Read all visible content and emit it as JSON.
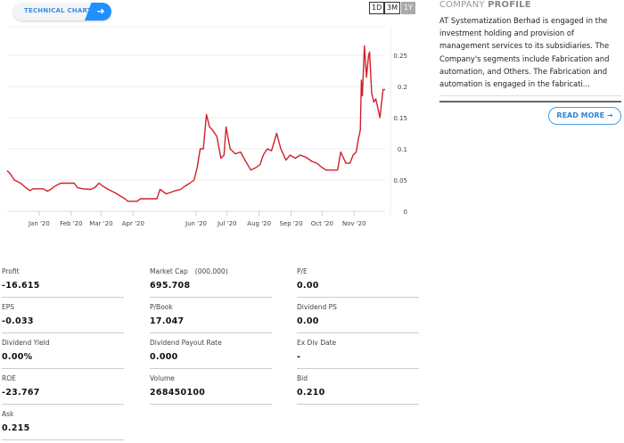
{
  "technical_chart": {
    "label": "TECHNICAL CHART",
    "icon": "arrow-right-icon"
  },
  "ranges": [
    {
      "label": "1D",
      "active": false
    },
    {
      "label": "3M",
      "active": false
    },
    {
      "label": "1Y",
      "active": true
    }
  ],
  "chart_data": {
    "type": "line",
    "line_color": "#d0202a",
    "grid": true,
    "ylim": [
      0,
      0.28
    ],
    "yticks": [
      {
        "v": 0,
        "label": "0"
      },
      {
        "v": 0.05,
        "label": "0.05"
      },
      {
        "v": 0.1,
        "label": "0.1"
      },
      {
        "v": 0.15,
        "label": "0.15"
      },
      {
        "v": 0.2,
        "label": "0.2"
      },
      {
        "v": 0.25,
        "label": "0.25"
      }
    ],
    "xticks": [
      {
        "d": "2020-01-01",
        "label": "Jan '20"
      },
      {
        "d": "2020-02-01",
        "label": "Feb '20"
      },
      {
        "d": "2020-03-01",
        "label": "Mar '20"
      },
      {
        "d": "2020-04-01",
        "label": "Apr '20"
      },
      {
        "d": "2020-06-01",
        "label": "Jun '20"
      },
      {
        "d": "2020-07-01",
        "label": "Jul '20"
      },
      {
        "d": "2020-08-01",
        "label": "Aug '20"
      },
      {
        "d": "2020-09-01",
        "label": "Sep '20"
      },
      {
        "d": "2020-10-01",
        "label": "Oct '20"
      },
      {
        "d": "2020-11-01",
        "label": "Nov '20"
      }
    ],
    "xlim": [
      "2019-12-01",
      "2020-12-01"
    ],
    "points": [
      [
        "2019-12-01",
        0.065
      ],
      [
        "2019-12-04",
        0.06
      ],
      [
        "2019-12-08",
        0.05
      ],
      [
        "2019-12-14",
        0.045
      ],
      [
        "2019-12-19",
        0.038
      ],
      [
        "2019-12-23",
        0.033
      ],
      [
        "2019-12-26",
        0.036
      ],
      [
        "2020-01-05",
        0.036
      ],
      [
        "2020-01-09",
        0.032
      ],
      [
        "2020-01-13",
        0.036
      ],
      [
        "2020-01-16",
        0.04
      ],
      [
        "2020-01-22",
        0.045
      ],
      [
        "2020-02-04",
        0.045
      ],
      [
        "2020-02-07",
        0.038
      ],
      [
        "2020-02-12",
        0.036
      ],
      [
        "2020-02-20",
        0.035
      ],
      [
        "2020-02-24",
        0.038
      ],
      [
        "2020-02-28",
        0.045
      ],
      [
        "2020-03-03",
        0.04
      ],
      [
        "2020-03-08",
        0.035
      ],
      [
        "2020-03-14",
        0.03
      ],
      [
        "2020-03-19",
        0.025
      ],
      [
        "2020-03-24",
        0.02
      ],
      [
        "2020-03-27",
        0.016
      ],
      [
        "2020-04-05",
        0.016
      ],
      [
        "2020-04-08",
        0.02
      ],
      [
        "2020-04-24",
        0.02
      ],
      [
        "2020-04-27",
        0.035
      ],
      [
        "2020-05-03",
        0.028
      ],
      [
        "2020-05-07",
        0.03
      ],
      [
        "2020-05-12",
        0.033
      ],
      [
        "2020-05-17",
        0.035
      ],
      [
        "2020-05-21",
        0.04
      ],
      [
        "2020-05-26",
        0.045
      ],
      [
        "2020-05-30",
        0.05
      ],
      [
        "2020-06-02",
        0.07
      ],
      [
        "2020-06-05",
        0.1
      ],
      [
        "2020-06-08",
        0.1
      ],
      [
        "2020-06-11",
        0.155
      ],
      [
        "2020-06-14",
        0.135
      ],
      [
        "2020-06-17",
        0.13
      ],
      [
        "2020-06-21",
        0.12
      ],
      [
        "2020-06-25",
        0.085
      ],
      [
        "2020-06-28",
        0.09
      ],
      [
        "2020-06-30",
        0.135
      ],
      [
        "2020-07-04",
        0.1
      ],
      [
        "2020-07-09",
        0.092
      ],
      [
        "2020-07-14",
        0.095
      ],
      [
        "2020-07-19",
        0.08
      ],
      [
        "2020-07-24",
        0.066
      ],
      [
        "2020-07-29",
        0.07
      ],
      [
        "2020-08-02",
        0.075
      ],
      [
        "2020-08-05",
        0.09
      ],
      [
        "2020-08-09",
        0.1
      ],
      [
        "2020-08-13",
        0.097
      ],
      [
        "2020-08-18",
        0.125
      ],
      [
        "2020-08-22",
        0.1
      ],
      [
        "2020-08-27",
        0.082
      ],
      [
        "2020-08-31",
        0.09
      ],
      [
        "2020-09-05",
        0.085
      ],
      [
        "2020-09-10",
        0.09
      ],
      [
        "2020-09-16",
        0.086
      ],
      [
        "2020-09-21",
        0.08
      ],
      [
        "2020-09-26",
        0.077
      ],
      [
        "2020-10-01",
        0.07
      ],
      [
        "2020-10-05",
        0.066
      ],
      [
        "2020-10-16",
        0.066
      ],
      [
        "2020-10-19",
        0.095
      ],
      [
        "2020-10-24",
        0.077
      ],
      [
        "2020-10-28",
        0.077
      ],
      [
        "2020-10-31",
        0.09
      ],
      [
        "2020-11-03",
        0.095
      ],
      [
        "2020-11-05",
        0.115
      ],
      [
        "2020-11-07",
        0.13
      ],
      [
        "2020-11-08",
        0.21
      ],
      [
        "2020-11-09",
        0.185
      ],
      [
        "2020-11-11",
        0.265
      ],
      [
        "2020-11-13",
        0.215
      ],
      [
        "2020-11-15",
        0.25
      ],
      [
        "2020-11-16",
        0.255
      ],
      [
        "2020-11-18",
        0.19
      ],
      [
        "2020-11-20",
        0.175
      ],
      [
        "2020-11-22",
        0.18
      ],
      [
        "2020-11-26",
        0.15
      ],
      [
        "2020-11-29",
        0.195
      ],
      [
        "2020-12-01",
        0.195
      ]
    ]
  },
  "company_profile": {
    "title_light": "COMPANY",
    "title_bold": "PROFILE",
    "text": "AT Systematization Berhad is engaged in the investment holding and provision of management services to its subsidiaries. The Company's segments include Fabrication and automation, and Others. The Fabrication and automation is engaged in the fabricati...",
    "read_more": "READ MORE",
    "read_more_icon": "arrow-right-icon"
  },
  "stats": [
    {
      "label": "Profit",
      "value": "-16.615"
    },
    {
      "label": "Market Cap",
      "unit": "(000,000)",
      "value": "695.708"
    },
    {
      "label": "P/E",
      "value": "0.00"
    },
    {
      "label": "EPS",
      "value": "-0.033"
    },
    {
      "label": "P/Book",
      "value": "17.047"
    },
    {
      "label": "Dividend PS",
      "value": "0.00"
    },
    {
      "label": "Dividend Yield",
      "value": "0.00%"
    },
    {
      "label": "Dividend Payout Rate",
      "value": "0.000"
    },
    {
      "label": "Ex Div Date",
      "value": "-"
    },
    {
      "label": "ROE",
      "value": "-23.767"
    },
    {
      "label": "Volume",
      "value": "268450100"
    },
    {
      "label": "Bid",
      "value": "0.210"
    },
    {
      "label": "Ask",
      "value": "0.215"
    }
  ]
}
